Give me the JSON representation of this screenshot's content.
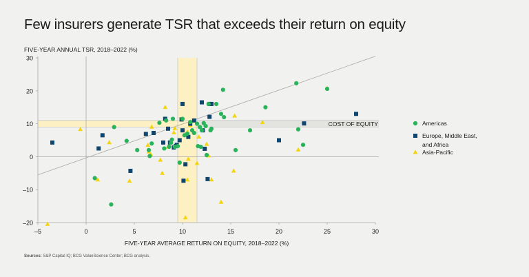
{
  "chart_data": {
    "type": "scatter",
    "title": "Few insurers generate TSR that exceeds their return on equity",
    "ylabel": "FIVE-YEAR ANNUAL TSR, 2018–2022 (%)",
    "xlabel": "FIVE-YEAR AVERAGE RETURN ON EQUITY, 2018–2022 (%)",
    "xlim": [
      -5,
      30
    ],
    "ylim": [
      -20,
      30
    ],
    "xticks": [
      "–5",
      "0",
      "5",
      "10",
      "15",
      "20",
      "25",
      "30"
    ],
    "yticks": [
      "30",
      "20",
      "10",
      "0",
      "–10",
      "–20"
    ],
    "cost_of_equity_label": "COST OF EQUITY",
    "cost_of_equity_range": [
      9,
      11
    ],
    "roe_band_range": [
      9.5,
      11.5
    ],
    "reference_line": {
      "from": [
        -5,
        -5.5
      ],
      "to": [
        30,
        30.5
      ]
    },
    "sources_label": "Sources:",
    "sources_text": " S&P Capital IQ; BCG ValueScience Center; BCG analysis.",
    "series": [
      {
        "name": "Americas",
        "color": "#29b35a",
        "marker": "circle",
        "points": [
          [
            0.9,
            -6.5
          ],
          [
            2.6,
            -14.5
          ],
          [
            2.9,
            9
          ],
          [
            4.2,
            4.8
          ],
          [
            5.3,
            2
          ],
          [
            6.5,
            2
          ],
          [
            6.6,
            0.2
          ],
          [
            6.8,
            4
          ],
          [
            7.6,
            10.3
          ],
          [
            8.1,
            2.5
          ],
          [
            8.3,
            11
          ],
          [
            8.6,
            3
          ],
          [
            8.8,
            4.2
          ],
          [
            8.9,
            5.2
          ],
          [
            9,
            11.5
          ],
          [
            9.2,
            3
          ],
          [
            9.5,
            3.2
          ],
          [
            9.7,
            -1.8
          ],
          [
            10,
            11.5
          ],
          [
            10.2,
            6.5
          ],
          [
            10.5,
            7
          ],
          [
            10.8,
            10.5
          ],
          [
            11,
            8
          ],
          [
            11.2,
            7.2
          ],
          [
            11.5,
            10
          ],
          [
            11.6,
            3.2
          ],
          [
            11.8,
            9
          ],
          [
            11.9,
            3
          ],
          [
            12,
            8
          ],
          [
            12.2,
            10.2
          ],
          [
            12.4,
            9.3
          ],
          [
            12.5,
            0.5
          ],
          [
            12.9,
            8
          ],
          [
            12.7,
            16
          ],
          [
            13,
            8.5
          ],
          [
            13.5,
            16
          ],
          [
            14,
            13
          ],
          [
            14.2,
            20.3
          ],
          [
            14.3,
            12
          ],
          [
            15.5,
            2
          ],
          [
            17,
            8
          ],
          [
            18.6,
            15
          ],
          [
            21.8,
            22.3
          ],
          [
            22,
            8.3
          ],
          [
            22.5,
            3.6
          ],
          [
            25,
            20.6
          ]
        ]
      },
      {
        "name": "Europe, Middle East, and Africa",
        "color": "#10466e",
        "marker": "square",
        "points": [
          [
            -3.5,
            4.3
          ],
          [
            1.3,
            2.5
          ],
          [
            1.7,
            6.5
          ],
          [
            4.6,
            -4.3
          ],
          [
            6.2,
            6.9
          ],
          [
            7,
            7.2
          ],
          [
            8,
            4.3
          ],
          [
            8.2,
            11.5
          ],
          [
            8.5,
            8.5
          ],
          [
            8.7,
            4.3
          ],
          [
            9.1,
            2.8
          ],
          [
            9.3,
            3.2
          ],
          [
            9.4,
            3.6
          ],
          [
            9.7,
            5
          ],
          [
            9.9,
            11.3
          ],
          [
            10,
            16
          ],
          [
            10,
            8
          ],
          [
            10.1,
            -7.3
          ],
          [
            10.3,
            -2.3
          ],
          [
            10.6,
            6
          ],
          [
            10.8,
            10
          ],
          [
            11.2,
            11
          ],
          [
            12,
            16.5
          ],
          [
            12.1,
            8
          ],
          [
            12.3,
            2.4
          ],
          [
            12.6,
            -6.8
          ],
          [
            12.8,
            16
          ],
          [
            12.8,
            12.1
          ],
          [
            13,
            16
          ],
          [
            20,
            5
          ],
          [
            22.6,
            10.1
          ],
          [
            28,
            13
          ]
        ]
      },
      {
        "name": "Asia-Pacific",
        "color": "#f2d40f",
        "marker": "triangle",
        "points": [
          [
            -4,
            -20.5
          ],
          [
            -0.6,
            8.3
          ],
          [
            1.2,
            -7
          ],
          [
            2.4,
            4.3
          ],
          [
            4.5,
            -7.4
          ],
          [
            6.2,
            6.8
          ],
          [
            6.4,
            3.5
          ],
          [
            6.5,
            1.5
          ],
          [
            6.7,
            0.7
          ],
          [
            6.8,
            9
          ],
          [
            7.7,
            -1
          ],
          [
            7.9,
            -5
          ],
          [
            8.2,
            15
          ],
          [
            8.5,
            3
          ],
          [
            9.1,
            7.3
          ],
          [
            9.2,
            8.6
          ],
          [
            10.3,
            -18.5
          ],
          [
            10.5,
            -7
          ],
          [
            10.5,
            7.5
          ],
          [
            10.6,
            -0.7
          ],
          [
            10.8,
            9.5
          ],
          [
            11.5,
            -2
          ],
          [
            11.7,
            6
          ],
          [
            12.5,
            3.8
          ],
          [
            12.7,
            0.3
          ],
          [
            13,
            -7
          ],
          [
            14,
            -13.8
          ],
          [
            15.3,
            -4.3
          ],
          [
            15.4,
            12.4
          ],
          [
            18.3,
            10.4
          ],
          [
            22,
            2.1
          ],
          [
            25,
            20.8
          ]
        ]
      }
    ]
  }
}
